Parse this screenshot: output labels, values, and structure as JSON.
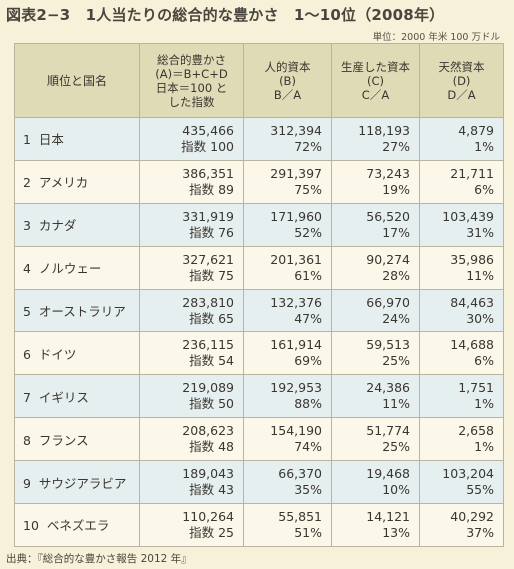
{
  "title": "図表2−3　1人当たりの総合的な豊かさ　1〜10位（2008年）",
  "unit": "単位：2000 年米 100 万ドル",
  "headers": {
    "rank_country": "順位と国名",
    "total": [
      "総合的豊かさ",
      "(A)＝B+C+D",
      "日本＝100 と",
      "した指数"
    ],
    "human": [
      "人的資本",
      "(B)",
      "B／A"
    ],
    "produced": [
      "生産した資本",
      "(C)",
      "C／A"
    ],
    "natural": [
      "天然資本",
      "(D)",
      "D／A"
    ]
  },
  "rows": [
    {
      "rank": "1",
      "country": "日本",
      "total": "435,466",
      "index": "指数 100",
      "human": "312,394",
      "human_pct": "72%",
      "produced": "118,193",
      "produced_pct": "27%",
      "natural": "4,879",
      "natural_pct": "1%"
    },
    {
      "rank": "2",
      "country": "アメリカ",
      "total": "386,351",
      "index": "指数 89",
      "human": "291,397",
      "human_pct": "75%",
      "produced": "73,243",
      "produced_pct": "19%",
      "natural": "21,711",
      "natural_pct": "6%"
    },
    {
      "rank": "3",
      "country": "カナダ",
      "total": "331,919",
      "index": "指数 76",
      "human": "171,960",
      "human_pct": "52%",
      "produced": "56,520",
      "produced_pct": "17%",
      "natural": "103,439",
      "natural_pct": "31%"
    },
    {
      "rank": "4",
      "country": "ノルウェー",
      "total": "327,621",
      "index": "指数 75",
      "human": "201,361",
      "human_pct": "61%",
      "produced": "90,274",
      "produced_pct": "28%",
      "natural": "35,986",
      "natural_pct": "11%"
    },
    {
      "rank": "5",
      "country": "オーストラリア",
      "total": "283,810",
      "index": "指数 65",
      "human": "132,376",
      "human_pct": "47%",
      "produced": "66,970",
      "produced_pct": "24%",
      "natural": "84,463",
      "natural_pct": "30%"
    },
    {
      "rank": "6",
      "country": "ドイツ",
      "total": "236,115",
      "index": "指数 54",
      "human": "161,914",
      "human_pct": "69%",
      "produced": "59,513",
      "produced_pct": "25%",
      "natural": "14,688",
      "natural_pct": "6%"
    },
    {
      "rank": "7",
      "country": "イギリス",
      "total": "219,089",
      "index": "指数 50",
      "human": "192,953",
      "human_pct": "88%",
      "produced": "24,386",
      "produced_pct": "11%",
      "natural": "1,751",
      "natural_pct": "1%"
    },
    {
      "rank": "8",
      "country": "フランス",
      "total": "208,623",
      "index": "指数 48",
      "human": "154,190",
      "human_pct": "74%",
      "produced": "51,774",
      "produced_pct": "25%",
      "natural": "2,658",
      "natural_pct": "1%"
    },
    {
      "rank": "9",
      "country": "サウジアラビア",
      "total": "189,043",
      "index": "指数 43",
      "human": "66,370",
      "human_pct": "35%",
      "produced": "19,468",
      "produced_pct": "10%",
      "natural": "103,204",
      "natural_pct": "55%"
    },
    {
      "rank": "10",
      "country": "ベネズエラ",
      "total": "110,264",
      "index": "指数 25",
      "human": "55,851",
      "human_pct": "51%",
      "produced": "14,121",
      "produced_pct": "13%",
      "natural": "40,292",
      "natural_pct": "37%"
    }
  ],
  "source": "出典：『総合的な豊かさ報告 2012 年』"
}
